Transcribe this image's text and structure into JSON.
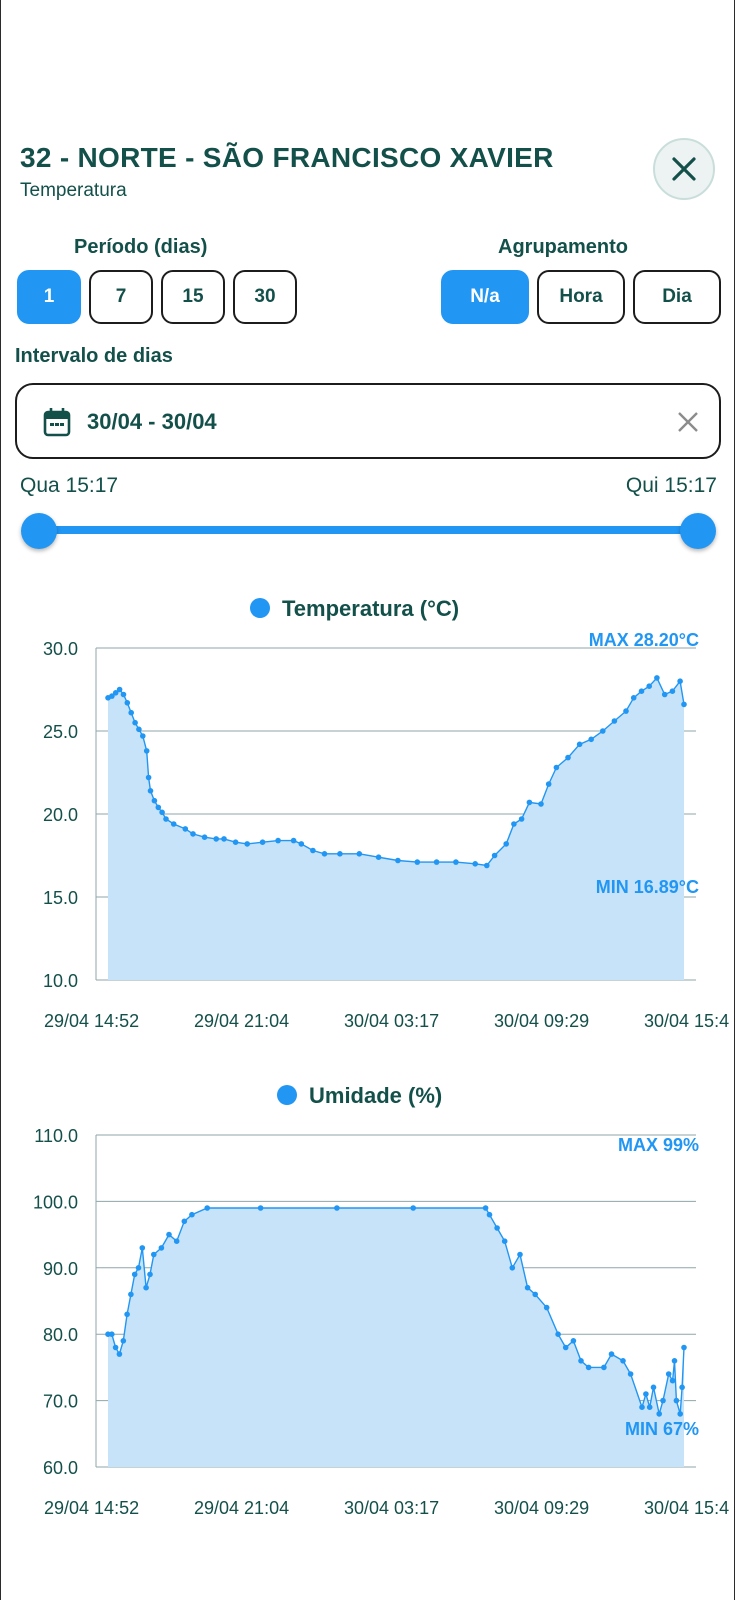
{
  "header": {
    "title": "32 - NORTE - SÃO FRANCISCO XAVIER",
    "subtitle": "Temperatura"
  },
  "icons": {
    "close": "close-icon",
    "calendar": "calendar-icon",
    "clear": "clear-icon"
  },
  "period": {
    "label": "Período (dias)",
    "options": [
      "1",
      "7",
      "15",
      "30"
    ],
    "selected": "1"
  },
  "grouping": {
    "label": "Agrupamento",
    "options": [
      "N/a",
      "Hora",
      "Dia"
    ],
    "selected": "N/a"
  },
  "interval": {
    "label": "Intervalo de dias",
    "value": "30/04 - 30/04"
  },
  "slider": {
    "start_label": "Qua 15:17",
    "end_label": "Qui 15:17",
    "start_value": 0,
    "end_value": 1
  },
  "colors": {
    "accent": "#2196f3",
    "text": "#14504a",
    "area_fill": "#c7e3fa",
    "grid": "#8fa6a8"
  },
  "chart_data": [
    {
      "type": "area",
      "title": "Temperatura (°C)",
      "series": [
        {
          "name": "Temperatura (°C)"
        }
      ],
      "ylim": [
        10,
        30
      ],
      "yticks": [
        "10.0",
        "15.0",
        "20.0",
        "25.0",
        "30.0"
      ],
      "xticks": [
        "29/04 14:52",
        "29/04 21:04",
        "30/04 03:17",
        "30/04 09:29",
        "30/04 15:4"
      ],
      "max_label": "MAX 28.20°C",
      "min_label": "MIN 16.89°C",
      "points": [
        [
          0.0,
          27.0
        ],
        [
          0.1,
          27.1
        ],
        [
          0.2,
          27.3
        ],
        [
          0.3,
          27.5
        ],
        [
          0.4,
          27.2
        ],
        [
          0.5,
          26.7
        ],
        [
          0.6,
          26.1
        ],
        [
          0.7,
          25.5
        ],
        [
          0.8,
          25.1
        ],
        [
          0.9,
          24.7
        ],
        [
          1.0,
          23.8
        ],
        [
          1.05,
          22.2
        ],
        [
          1.1,
          21.4
        ],
        [
          1.2,
          20.8
        ],
        [
          1.3,
          20.4
        ],
        [
          1.4,
          20.1
        ],
        [
          1.5,
          19.7
        ],
        [
          1.7,
          19.4
        ],
        [
          2.0,
          19.1
        ],
        [
          2.2,
          18.8
        ],
        [
          2.5,
          18.6
        ],
        [
          2.8,
          18.5
        ],
        [
          3.0,
          18.5
        ],
        [
          3.3,
          18.3
        ],
        [
          3.6,
          18.2
        ],
        [
          4.0,
          18.3
        ],
        [
          4.4,
          18.4
        ],
        [
          4.8,
          18.4
        ],
        [
          5.0,
          18.2
        ],
        [
          5.3,
          17.8
        ],
        [
          5.6,
          17.6
        ],
        [
          6.0,
          17.6
        ],
        [
          6.5,
          17.6
        ],
        [
          7.0,
          17.4
        ],
        [
          7.5,
          17.2
        ],
        [
          8.0,
          17.1
        ],
        [
          8.5,
          17.1
        ],
        [
          9.0,
          17.1
        ],
        [
          9.5,
          17.0
        ],
        [
          9.8,
          16.9
        ],
        [
          10.0,
          17.5
        ],
        [
          10.3,
          18.2
        ],
        [
          10.5,
          19.4
        ],
        [
          10.7,
          19.7
        ],
        [
          10.9,
          20.7
        ],
        [
          11.2,
          20.6
        ],
        [
          11.4,
          21.8
        ],
        [
          11.6,
          22.8
        ],
        [
          11.9,
          23.4
        ],
        [
          12.2,
          24.2
        ],
        [
          12.5,
          24.5
        ],
        [
          12.8,
          25.0
        ],
        [
          13.1,
          25.6
        ],
        [
          13.4,
          26.2
        ],
        [
          13.6,
          27.0
        ],
        [
          13.8,
          27.4
        ],
        [
          14.0,
          27.7
        ],
        [
          14.2,
          28.2
        ],
        [
          14.4,
          27.2
        ],
        [
          14.6,
          27.4
        ],
        [
          14.8,
          28.0
        ],
        [
          14.9,
          26.6
        ]
      ]
    },
    {
      "type": "area",
      "title": "Umidade (%)",
      "series": [
        {
          "name": "Umidade (%)"
        }
      ],
      "ylim": [
        60,
        110
      ],
      "yticks": [
        "60.0",
        "70.0",
        "80.0",
        "90.0",
        "100.0",
        "110.0"
      ],
      "xticks": [
        "29/04 14:52",
        "29/04 21:04",
        "30/04 03:17",
        "30/04 09:29",
        "30/04 15:4"
      ],
      "max_label": "MAX 99%",
      "min_label": "MIN 67%",
      "points": [
        [
          0.0,
          80
        ],
        [
          0.1,
          80
        ],
        [
          0.2,
          78
        ],
        [
          0.3,
          77
        ],
        [
          0.4,
          79
        ],
        [
          0.5,
          83
        ],
        [
          0.6,
          86
        ],
        [
          0.7,
          89
        ],
        [
          0.8,
          90
        ],
        [
          0.9,
          93
        ],
        [
          1.0,
          87
        ],
        [
          1.1,
          89
        ],
        [
          1.2,
          92
        ],
        [
          1.4,
          93
        ],
        [
          1.6,
          95
        ],
        [
          1.8,
          94
        ],
        [
          2.0,
          97
        ],
        [
          2.2,
          98
        ],
        [
          2.6,
          99
        ],
        [
          4.0,
          99
        ],
        [
          6.0,
          99
        ],
        [
          8.0,
          99
        ],
        [
          9.9,
          99
        ],
        [
          10.0,
          98
        ],
        [
          10.2,
          96
        ],
        [
          10.4,
          94
        ],
        [
          10.6,
          90
        ],
        [
          10.8,
          92
        ],
        [
          11.0,
          87
        ],
        [
          11.2,
          86
        ],
        [
          11.5,
          84
        ],
        [
          11.8,
          80
        ],
        [
          12.0,
          78
        ],
        [
          12.2,
          79
        ],
        [
          12.4,
          76
        ],
        [
          12.6,
          75
        ],
        [
          13.0,
          75
        ],
        [
          13.2,
          77
        ],
        [
          13.5,
          76
        ],
        [
          13.7,
          74
        ],
        [
          14.0,
          69
        ],
        [
          14.1,
          71
        ],
        [
          14.2,
          69
        ],
        [
          14.3,
          72
        ],
        [
          14.45,
          68
        ],
        [
          14.55,
          70
        ],
        [
          14.7,
          74
        ],
        [
          14.8,
          73
        ],
        [
          14.85,
          76
        ],
        [
          14.9,
          70
        ],
        [
          15.0,
          68
        ],
        [
          15.05,
          72
        ],
        [
          15.1,
          78
        ]
      ]
    }
  ]
}
